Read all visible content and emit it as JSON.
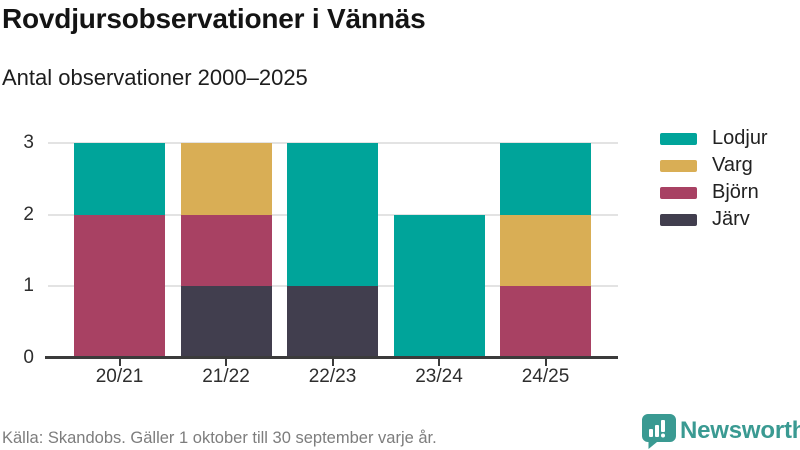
{
  "title": "Rovdjursobservationer i Vännäs",
  "subtitle": "Antal observationer 2000–2025",
  "footer": {
    "source": "Källa: Skandobs. Gäller 1 oktober till 30 september varje år.",
    "brand_name": "Newsworthy",
    "brand_color": "#3a9a92"
  },
  "ui_colors": {
    "axis": "#3b3b3b",
    "gridline": "#e3e3e3",
    "text": "#141414",
    "muted_text": "#7d7d7d"
  },
  "chart_data": {
    "type": "bar",
    "stacked": true,
    "title": "Rovdjursobservationer i Vännäs",
    "subtitle": "Antal observationer 2000–2025",
    "categories": [
      "20/21",
      "21/22",
      "22/23",
      "23/24",
      "24/25"
    ],
    "series": [
      {
        "name": "Lodjur",
        "color": "#00a49a",
        "values": [
          1,
          0,
          2,
          2,
          1
        ]
      },
      {
        "name": "Varg",
        "color": "#d9ae55",
        "values": [
          0,
          1,
          0,
          0,
          1
        ]
      },
      {
        "name": "Björn",
        "color": "#a84163",
        "values": [
          2,
          1,
          0,
          0,
          1
        ]
      },
      {
        "name": "Järv",
        "color": "#413e4e",
        "values": [
          0,
          1,
          1,
          0,
          0
        ]
      }
    ],
    "stack_order_bottom_to_top": [
      "Järv",
      "Björn",
      "Varg",
      "Lodjur"
    ],
    "ylim": [
      0,
      3
    ],
    "yticks": [
      0,
      1,
      2,
      3
    ],
    "grid": true,
    "legend_position": "right"
  }
}
